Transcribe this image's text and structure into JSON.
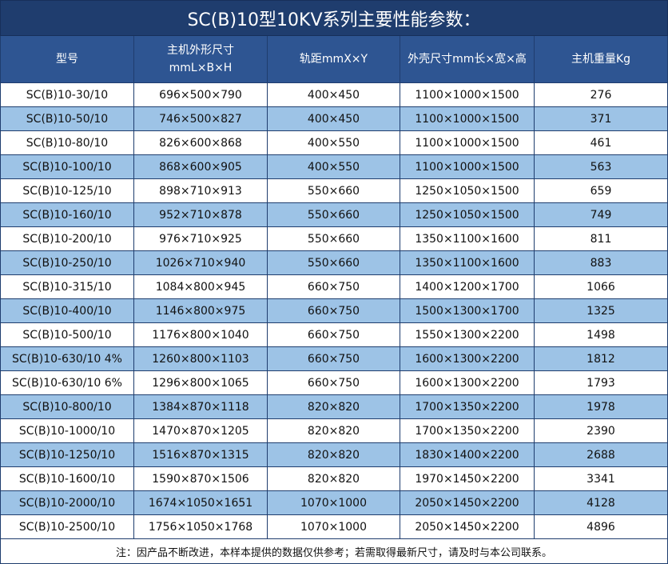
{
  "title": "SC(B)10型10KV系列主要性能参数：",
  "table": {
    "headers": [
      "型号",
      "主机外形尺寸\nmmL×B×H",
      "轨距mmX×Y",
      "外壳尺寸mm长×宽×高",
      "主机重量Kg"
    ],
    "rows": [
      [
        "SC(B)10-30/10",
        "696×500×790",
        "400×450",
        "1100×1000×1500",
        276
      ],
      [
        "SC(B)10-50/10",
        "746×500×827",
        "400×450",
        "1100×1000×1500",
        371
      ],
      [
        "SC(B)10-80/10",
        "826×600×868",
        "400×550",
        "1100×1000×1500",
        461
      ],
      [
        "SC(B)10-100/10",
        "868×600×905",
        "400×550",
        "1100×1000×1500",
        563
      ],
      [
        "SC(B)10-125/10",
        "898×710×913",
        "550×660",
        "1250×1050×1500",
        659
      ],
      [
        "SC(B)10-160/10",
        "952×710×878",
        "550×660",
        "1250×1050×1500",
        749
      ],
      [
        "SC(B)10-200/10",
        "976×710×925",
        "550×660",
        "1350×1100×1600",
        811
      ],
      [
        "SC(B)10-250/10",
        "1026×710×940",
        "550×660",
        "1350×1100×1600",
        883
      ],
      [
        "SC(B)10-315/10",
        "1084×800×945",
        "660×750",
        "1400×1200×1700",
        1066
      ],
      [
        "SC(B)10-400/10",
        "1146×800×975",
        "660×750",
        "1500×1300×1700",
        1325
      ],
      [
        "SC(B)10-500/10",
        "1176×800×1040",
        "660×750",
        "1550×1300×2200",
        1498
      ],
      [
        "SC(B)10-630/10 4%",
        "1260×800×1103",
        "660×750",
        "1600×1300×2200",
        1812
      ],
      [
        "SC(B)10-630/10 6%",
        "1296×800×1065",
        "660×750",
        "1600×1300×2200",
        1793
      ],
      [
        "SC(B)10-800/10",
        "1384×870×1118",
        "820×820",
        "1700×1350×2200",
        1978
      ],
      [
        "SC(B)10-1000/10",
        "1470×870×1205",
        "820×820",
        "1700×1350×2200",
        2390
      ],
      [
        "SC(B)10-1250/10",
        "1516×870×1315",
        "820×820",
        "1830×1400×2200",
        2688
      ],
      [
        "SC(B)10-1600/10",
        "1590×870×1506",
        "820×820",
        "1970×1450×2200",
        3341
      ],
      [
        "SC(B)10-2000/10",
        "1674×1050×1651",
        "1070×1000",
        "2050×1450×2200",
        4128
      ],
      [
        "SC(B)10-2500/10",
        "1756×1050×1768",
        "1070×1000",
        "2050×1450×2200",
        4896
      ]
    ]
  },
  "note": "注：因产品不断改进，本样本提供的数据仅供参考；若需取得最新尺寸，请及时与本公司联系。"
}
